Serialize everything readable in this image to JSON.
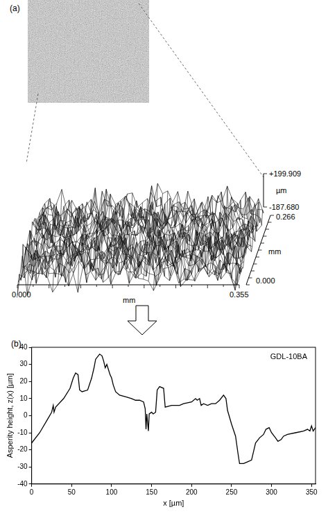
{
  "surface": {
    "panel": "(a)",
    "x_axis": {
      "label": "mm",
      "start": "0.000",
      "end": "0.355"
    },
    "depth_axis": {
      "label": "mm",
      "start": "0.000",
      "end": "0.266"
    },
    "height_axis": {
      "label": "µm",
      "top": "+199.909",
      "bottom": "-187.680"
    }
  },
  "chart_data": {
    "type": "line",
    "panel": "(b)",
    "annotations": [
      "GDL-10BA"
    ],
    "x_label": "x [µm]",
    "y_label": "Asperity height, z(x) [µm]",
    "xlim": [
      0,
      355
    ],
    "xticks": [
      0,
      50,
      100,
      150,
      200,
      250,
      300,
      350
    ],
    "ylim": [
      -40,
      40
    ],
    "yticks": [
      -40,
      -30,
      -20,
      -10,
      0,
      10,
      20,
      30,
      40
    ],
    "grid": false,
    "legend": "none",
    "series": [
      {
        "name": "GDL-10BA",
        "color": "#000000",
        "marker": "none",
        "line_style": "solid",
        "x": [
          0,
          10,
          20,
          25,
          27,
          28,
          30,
          40,
          48,
          52,
          55,
          58,
          60,
          63,
          70,
          75,
          78,
          80,
          85,
          88,
          90,
          92,
          94,
          96,
          98,
          100,
          102,
          105,
          110,
          118,
          125,
          130,
          135,
          140,
          142,
          143,
          144,
          146,
          147,
          150,
          152,
          155,
          157,
          160,
          165,
          167,
          175,
          185,
          190,
          200,
          205,
          207,
          210,
          212,
          215,
          220,
          225,
          230,
          235,
          240,
          243,
          245,
          250,
          255,
          258,
          260,
          265,
          270,
          275,
          280,
          285,
          290,
          293,
          297,
          300,
          305,
          308,
          312,
          315,
          320,
          330,
          340,
          345,
          348,
          350,
          352,
          355
        ],
        "values": [
          -16,
          -10,
          -2,
          2,
          6,
          2,
          5,
          10,
          16,
          22,
          25,
          24,
          15,
          14,
          15,
          22,
          28,
          33,
          36,
          35,
          32,
          28,
          30,
          27,
          24,
          22,
          18,
          14,
          12,
          11,
          10,
          9,
          9,
          8,
          4,
          -8,
          1,
          -9,
          1,
          2,
          1,
          2,
          15,
          17,
          16,
          5,
          6,
          6,
          7,
          8,
          10,
          9,
          10,
          6,
          7,
          6,
          7,
          7,
          9,
          12,
          10,
          3,
          -5,
          -12,
          -22,
          -28,
          -28,
          -27,
          -26,
          -16,
          -13,
          -11,
          -8,
          -7,
          -10,
          -13,
          -15,
          -14,
          -12,
          -11,
          -10,
          -9,
          -8,
          -9,
          -6,
          -9,
          -7
        ]
      }
    ]
  }
}
